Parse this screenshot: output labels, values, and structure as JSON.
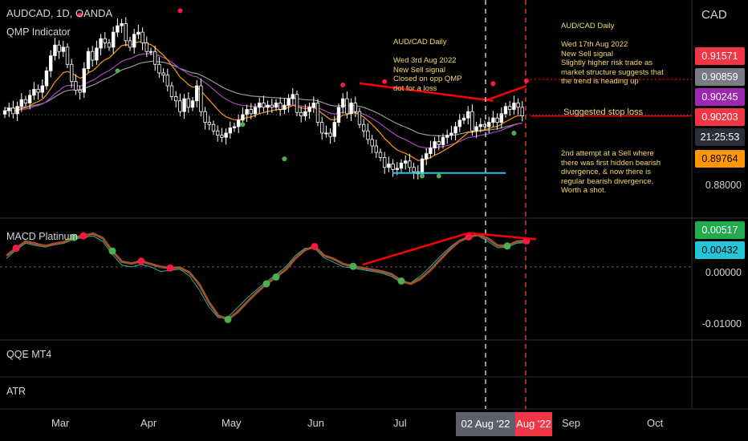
{
  "header": {
    "symbol": "AUDCAD, 1D, OANDA",
    "indicator": "QMP Indicator",
    "currency": "CAD"
  },
  "panes": {
    "macd_label": "MACD Platinum",
    "qqe_label": "QQE MT4",
    "atr_label": "ATR"
  },
  "annotations": {
    "note1": "AUD/CAD Daily\n\nWed 3rd Aug 2022\nNew Sell signal\nClosed on opp QMP\ndot for a loss",
    "note2": "AUD/CAD Daily\n\nWed 17th Aug 2022\nNew Sell signal\nSlightly higher risk trade as\nmarket structure suggests that\nthe trend is heading up",
    "note3": "Suggested stop loss",
    "note4": "2nd attempt at a Sell where\nthere was first hidden bearish\ndivergence, & now there is\nregular bearish divergence.\nWorth a shot."
  },
  "price_badges": [
    {
      "label": "0.91571",
      "color": "#f23645"
    },
    {
      "label": "0.90859",
      "color": "#787b86"
    },
    {
      "label": "0.90245",
      "color": "#9c27b0"
    },
    {
      "label": "0.90203",
      "color": "#f23645"
    },
    {
      "label": "21:25:53",
      "color": "#2a2e39"
    },
    {
      "label": "0.89764",
      "color": "#ff9800"
    }
  ],
  "price_axis_label": "0.88000",
  "macd_badges": [
    {
      "label": "0.00517",
      "color": "#22ab4c"
    },
    {
      "label": "0.00432",
      "color": "#26c6da"
    }
  ],
  "macd_axis_labels": [
    "0.00000",
    "-0.01000"
  ],
  "time_axis": {
    "labels": [
      "Mar",
      "Apr",
      "May",
      "Jun",
      "Jul",
      "Sep",
      "Oct"
    ],
    "cursor1": "02 Aug '22",
    "cursor2": "Aug '22"
  },
  "colors": {
    "bull": "#ffffff",
    "bear": "#ffffff",
    "ma_grey": "#9598a1",
    "ma_purple": "#ab47bc",
    "ma_orange": "#ff9800",
    "signal_red": "#ff1744",
    "signal_green": "#4caf50",
    "trend_red": "#ff0000",
    "support": "#26c6da"
  },
  "chart_data": {
    "type": "candlestick",
    "title": "AUDCAD, 1D, OANDA",
    "price_ylim": [
      0.8775,
      0.9255
    ],
    "closes": [
      0.9012,
      0.9018,
      0.9005,
      0.9022,
      0.9038,
      0.903,
      0.9048,
      0.9062,
      0.9055,
      0.907,
      0.9105,
      0.914,
      0.9165,
      0.915,
      0.916,
      0.912,
      0.908,
      0.906,
      0.9055,
      0.911,
      0.915,
      0.913,
      0.9158,
      0.918,
      0.917,
      0.916,
      0.9195,
      0.921,
      0.9215,
      0.9175,
      0.916,
      0.919,
      0.9195,
      0.917,
      0.915,
      0.915,
      0.912,
      0.91,
      0.9095,
      0.907,
      0.9045,
      0.9035,
      0.901,
      0.904,
      0.902,
      0.9035,
      0.907,
      0.901,
      0.8985,
      0.898,
      0.8965,
      0.8955,
      0.895,
      0.896,
      0.8972,
      0.8975,
      0.899,
      0.9003,
      0.9015,
      0.9005,
      0.902,
      0.903,
      0.902,
      0.9025,
      0.902,
      0.903,
      0.9015,
      0.9025,
      0.904,
      0.905,
      0.9008,
      0.9,
      0.901,
      0.902,
      0.903,
      0.8985,
      0.896,
      0.896,
      0.8952,
      0.8985,
      0.902,
      0.904,
      0.9005,
      0.903,
      0.901,
      0.898,
      0.8965,
      0.8945,
      0.893,
      0.8915,
      0.8903,
      0.888,
      0.8888,
      0.8875,
      0.8878,
      0.889,
      0.8895,
      0.888,
      0.887,
      0.8865,
      0.89,
      0.8912,
      0.8925,
      0.894,
      0.8933,
      0.895,
      0.8955,
      0.896,
      0.8975,
      0.899,
      0.8995,
      0.901,
      0.8965,
      0.8975,
      0.898,
      0.8975,
      0.8985,
      0.8995,
      0.8985,
      0.9005,
      0.9022,
      0.9015,
      0.903,
      0.902,
      0.9
    ],
    "macd_ylim": [
      -0.0118,
      0.0075
    ],
    "macd_line": [
      0.002,
      0.0033,
      0.0045,
      0.0041,
      0.0037,
      0.0041,
      0.0044,
      0.0052,
      0.0055,
      0.0059,
      0.0051,
      0.0028,
      0.0009,
      0.0006,
      0.001,
      0.0005,
      0.0,
      -0.0002,
      -0.0001,
      -0.001,
      -0.003,
      -0.0062,
      -0.0086,
      -0.0093,
      -0.008,
      -0.0062,
      -0.0045,
      -0.003,
      -0.0018,
      -0.0005,
      0.0015,
      0.003,
      0.0036,
      0.002,
      0.0014,
      0.0005,
      0.0001,
      -0.0002,
      -0.0005,
      -0.0008,
      -0.0013,
      -0.0025,
      -0.003,
      -0.0021,
      -0.0006,
      0.0012,
      0.003,
      0.0045,
      0.0053,
      0.0057,
      0.005,
      0.0038,
      0.0037,
      0.0045,
      0.0046
    ],
    "signal_line": [
      0.0015,
      0.003,
      0.0042,
      0.0038,
      0.0035,
      0.0039,
      0.0042,
      0.0049,
      0.0052,
      0.0055,
      0.0045,
      0.0022,
      0.0003,
      0.0,
      0.0004,
      0.0,
      -0.0008,
      -0.0006,
      -0.0004,
      -0.0016,
      -0.004,
      -0.007,
      -0.009,
      -0.0089,
      -0.0072,
      -0.0055,
      -0.004,
      -0.0026,
      -0.0014,
      0.0,
      0.002,
      0.0033,
      0.0033,
      0.0016,
      0.0008,
      0.0,
      -0.0002,
      -0.0005,
      -0.0008,
      -0.0011,
      -0.0017,
      -0.0028,
      -0.0028,
      -0.0016,
      0.0,
      0.0018,
      0.0034,
      0.0047,
      0.0054,
      0.0055,
      0.0045,
      0.0034,
      0.0035,
      0.0042,
      0.0043
    ]
  }
}
